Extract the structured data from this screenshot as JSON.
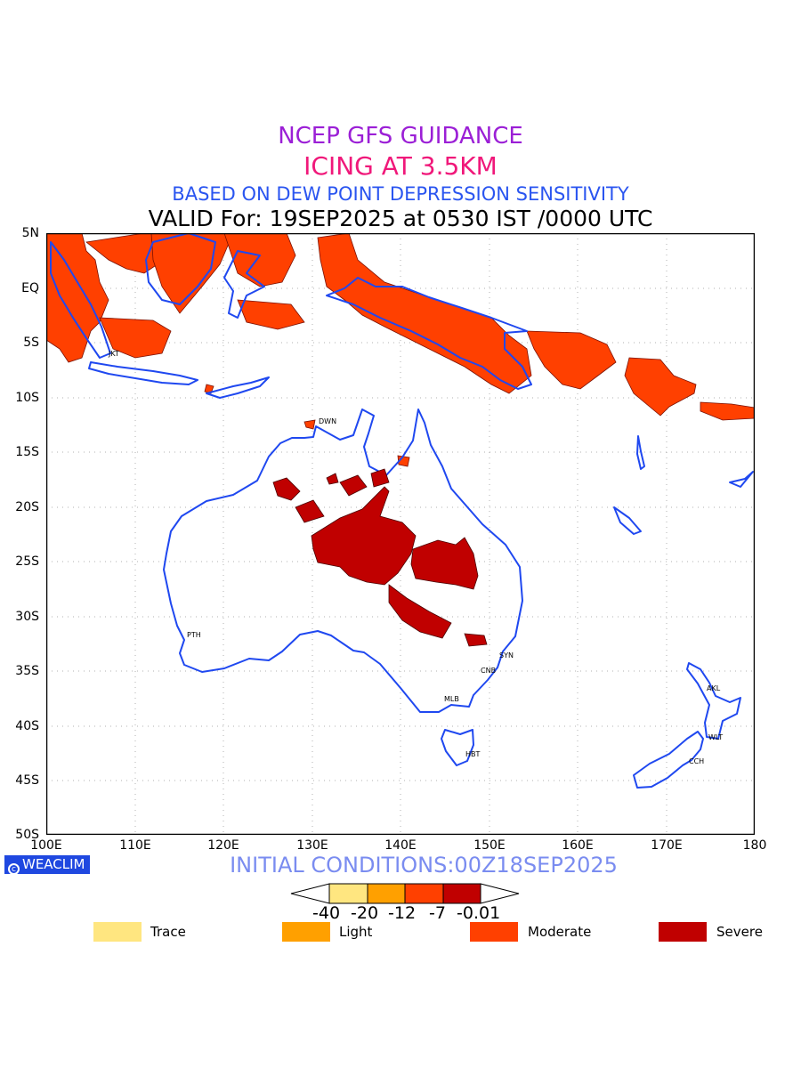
{
  "titles": {
    "line1": "NCEP GFS GUIDANCE",
    "line2": "ICING AT 3.5KM",
    "line3": "BASED ON DEW POINT DEPRESSION SENSITIVITY",
    "line4": "VALID For: 19SEP2025 at 0530 IST /0000 UTC"
  },
  "axes": {
    "lat_labels": [
      "5N",
      "EQ",
      "5S",
      "10S",
      "15S",
      "20S",
      "25S",
      "30S",
      "35S",
      "40S",
      "45S",
      "50S"
    ],
    "lon_labels": [
      "100E",
      "110E",
      "120E",
      "130E",
      "140E",
      "150E",
      "160E",
      "170E",
      "180"
    ]
  },
  "cities": [
    "JKT",
    "DWN",
    "PTH",
    "SYN",
    "CNB",
    "MLB",
    "HBT",
    "AKL",
    "WLT",
    "CCH"
  ],
  "badge": {
    "icon": "copyright-circle-icon",
    "text": "WEACLIM"
  },
  "initial_conditions": "INITIAL CONDITIONS:00Z18SEP2025",
  "colorbar": {
    "labels": [
      "-40",
      "-20",
      "-12",
      "-7",
      "-0.01"
    ],
    "colors": [
      "#ffe680",
      "#ffa000",
      "#ff4000",
      "#c00000"
    ]
  },
  "legend": [
    {
      "label": "Trace",
      "color": "#ffe680"
    },
    {
      "label": "Light",
      "color": "#ffa000"
    },
    {
      "label": "Moderate",
      "color": "#ff4000"
    },
    {
      "label": "Severe",
      "color": "#c00000"
    }
  ],
  "colors": {
    "coast": "#1f48f0",
    "grid": "#b0b0b0"
  }
}
